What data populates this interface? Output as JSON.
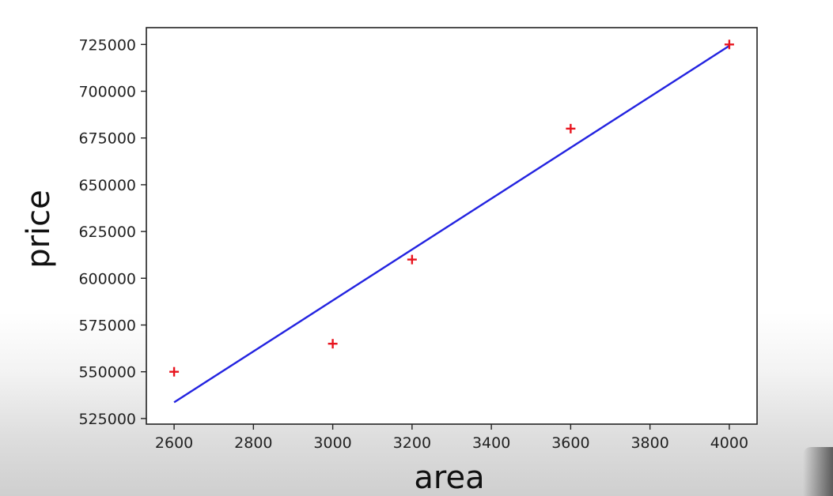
{
  "chart_data": {
    "type": "scatter",
    "title": "",
    "xlabel": "area",
    "ylabel": "price",
    "xlim": [
      2530,
      4070
    ],
    "ylim": [
      522000,
      734000
    ],
    "xticks": [
      2600,
      2800,
      3000,
      3200,
      3400,
      3600,
      3800,
      4000
    ],
    "yticks": [
      525000,
      550000,
      575000,
      600000,
      625000,
      650000,
      675000,
      700000,
      725000
    ],
    "xtick_labels": [
      "2600",
      "2800",
      "3000",
      "3200",
      "3400",
      "3600",
      "3800",
      "4000"
    ],
    "ytick_labels": [
      "525000",
      "550000",
      "575000",
      "600000",
      "625000",
      "650000",
      "675000",
      "700000",
      "725000"
    ],
    "grid": false,
    "series": [
      {
        "kind": "scatter",
        "marker": "+",
        "color": "#e8141e",
        "points": [
          {
            "x": 2600,
            "y": 550000
          },
          {
            "x": 3000,
            "y": 565000
          },
          {
            "x": 3200,
            "y": 610000
          },
          {
            "x": 3600,
            "y": 680000
          },
          {
            "x": 4000,
            "y": 725000
          }
        ]
      },
      {
        "kind": "line",
        "color": "#2323e0",
        "points": [
          {
            "x": 2600,
            "y": 533664
          },
          {
            "x": 4000,
            "y": 724280
          }
        ]
      }
    ]
  }
}
